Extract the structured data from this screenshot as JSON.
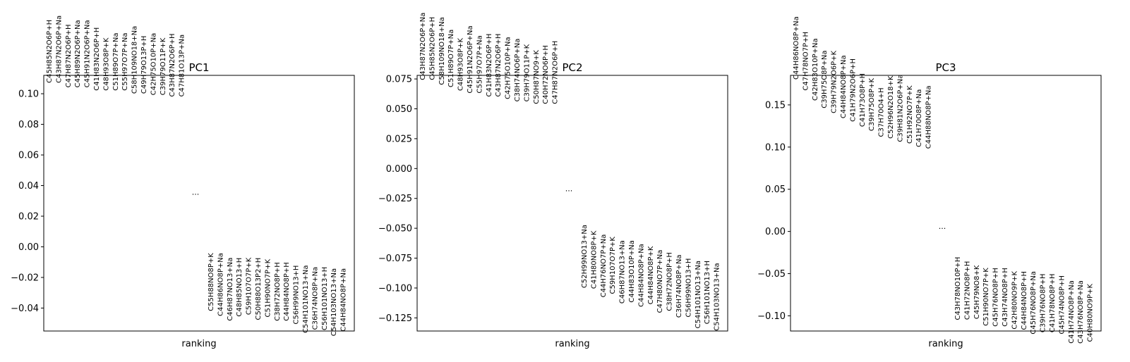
{
  "chart_data": [
    {
      "type": "scatter",
      "title": "PC1",
      "xlabel": "ranking",
      "ylabel": "",
      "ylim": [
        -0.055,
        0.112
      ],
      "yticks": [
        -0.04,
        -0.02,
        0.0,
        0.02,
        0.04,
        0.06,
        0.08,
        0.1
      ],
      "ytick_labels": [
        "−0.04",
        "−0.02",
        "0.00",
        "0.02",
        "0.04",
        "0.06",
        "0.08",
        "0.10"
      ],
      "ellipsis": {
        "label": "...",
        "y": 0.034
      },
      "top_features": [
        {
          "label": "C45H85N2O6P+H",
          "y": 0.107
        },
        {
          "label": "C43H87N2O6P+Na",
          "y": 0.107
        },
        {
          "label": "C47H87N2O6P+H",
          "y": 0.104
        },
        {
          "label": "C45H89N2O6P+Na",
          "y": 0.104
        },
        {
          "label": "C45H91N2O6P+Na",
          "y": 0.104
        },
        {
          "label": "C41H83N2O6P+H",
          "y": 0.102
        },
        {
          "label": "C48H93O8P+K",
          "y": 0.102
        },
        {
          "label": "C51H89O7P+Na",
          "y": 0.102
        },
        {
          "label": "C55H97O7P+Na",
          "y": 0.102
        },
        {
          "label": "C58H109NO18+Na",
          "y": 0.1
        },
        {
          "label": "C49H79O13P+H",
          "y": 0.1
        },
        {
          "label": "C42H75O10P+Na",
          "y": 0.099
        },
        {
          "label": "C39H79O11P+K",
          "y": 0.099
        },
        {
          "label": "C43H87N2O6P+H",
          "y": 0.098
        },
        {
          "label": "C47H81O13P+Na",
          "y": 0.098
        }
      ],
      "bottom_features": [
        {
          "label": "C55H88NO8P+K",
          "y": -0.004
        },
        {
          "label": "C44H86NO8P+Na",
          "y": -0.004
        },
        {
          "label": "C46H87NO13+Na",
          "y": -0.007
        },
        {
          "label": "C48H85NO13+H",
          "y": -0.007
        },
        {
          "label": "C59H107O7P+K",
          "y": -0.007
        },
        {
          "label": "C50H88O13P2+H",
          "y": -0.007
        },
        {
          "label": "C51H90NO7P+K",
          "y": -0.008
        },
        {
          "label": "C38H72NO8P+H",
          "y": -0.01
        },
        {
          "label": "C44H84NO8P+H",
          "y": -0.01
        },
        {
          "label": "C56H99NO13+H",
          "y": -0.012
        },
        {
          "label": "C54H101NO13+Na",
          "y": -0.012
        },
        {
          "label": "C36H74NO8P+Na",
          "y": -0.013
        },
        {
          "label": "C56H101NO13+H",
          "y": -0.013
        },
        {
          "label": "C54H103NO13+Na",
          "y": -0.014
        },
        {
          "label": "C44H84NO8P+Na",
          "y": -0.014
        }
      ]
    },
    {
      "type": "scatter",
      "title": "PC2",
      "xlabel": "ranking",
      "ylabel": "",
      "ylim": [
        -0.136,
        0.078
      ],
      "yticks": [
        -0.125,
        -0.1,
        -0.075,
        -0.05,
        -0.025,
        0.0,
        0.025,
        0.05,
        0.075
      ],
      "ytick_labels": [
        "−0.125",
        "−0.100",
        "−0.075",
        "−0.050",
        "−0.025",
        "0.000",
        "0.025",
        "0.050",
        "0.075"
      ],
      "ellipsis": {
        "label": "...",
        "y": -0.019
      },
      "top_features": [
        {
          "label": "C43H87N2O6P+Na",
          "y": 0.074
        },
        {
          "label": "C45H85N2O6P+H",
          "y": 0.074
        },
        {
          "label": "C58H109NO18+Na",
          "y": 0.07
        },
        {
          "label": "C51H89O7P+Na",
          "y": 0.068
        },
        {
          "label": "C48H93O8P+K",
          "y": 0.065
        },
        {
          "label": "C45H91N2O6P+Na",
          "y": 0.063
        },
        {
          "label": "C55H97O7P+Na",
          "y": 0.063
        },
        {
          "label": "C41H83N2O6P+H",
          "y": 0.06
        },
        {
          "label": "C43H87N2O6P+H",
          "y": 0.06
        },
        {
          "label": "C42H75O10P+Na",
          "y": 0.058
        },
        {
          "label": "C38H74NO6P+Na",
          "y": 0.056
        },
        {
          "label": "C39H79O11P+K",
          "y": 0.056
        },
        {
          "label": "C50H87NO9+K",
          "y": 0.054
        },
        {
          "label": "C40H72NO6P+H",
          "y": 0.054
        },
        {
          "label": "C47H87N2O6P+H",
          "y": 0.054
        }
      ],
      "bottom_features": [
        {
          "label": "C52H99NO13+Na",
          "y": -0.047
        },
        {
          "label": "C41H80NO8P+K",
          "y": -0.052
        },
        {
          "label": "C44H76NO7P+Na",
          "y": -0.055
        },
        {
          "label": "C59H107O7P+K",
          "y": -0.057
        },
        {
          "label": "C46H87NO13+Na",
          "y": -0.06
        },
        {
          "label": "C44H83O10P+Na",
          "y": -0.06
        },
        {
          "label": "C44H84NO8P+Na",
          "y": -0.063
        },
        {
          "label": "C44H84NO8P+K",
          "y": -0.065
        },
        {
          "label": "C47H80NO7P+Na",
          "y": -0.068
        },
        {
          "label": "C38H72NO8P+H",
          "y": -0.07
        },
        {
          "label": "C36H74NO8P+Na",
          "y": -0.072
        },
        {
          "label": "C56H99NO13+H",
          "y": -0.075
        },
        {
          "label": "C54H101NO13+Na",
          "y": -0.077
        },
        {
          "label": "C56H101NO13+H",
          "y": -0.077
        },
        {
          "label": "C54H103NO13+Na",
          "y": -0.079
        }
      ]
    },
    {
      "type": "scatter",
      "title": "PC3",
      "xlabel": "ranking",
      "ylabel": "",
      "ylim": [
        -0.118,
        0.185
      ],
      "yticks": [
        -0.1,
        -0.05,
        0.0,
        0.05,
        0.1,
        0.15
      ],
      "ytick_labels": [
        "−0.10",
        "−0.05",
        "0.00",
        "0.05",
        "0.10",
        "0.15"
      ],
      "ellipsis": {
        "label": "...",
        "y": 0.003
      },
      "top_features": [
        {
          "label": "C44H86NO8P+Na",
          "y": 0.18
        },
        {
          "label": "C47H78NO7P+H",
          "y": 0.167
        },
        {
          "label": "C42H83O10P+Na",
          "y": 0.155
        },
        {
          "label": "C39H75O8P+Na",
          "y": 0.146
        },
        {
          "label": "C39H79N2O6P+K",
          "y": 0.14
        },
        {
          "label": "C44H84NO8P+Na",
          "y": 0.134
        },
        {
          "label": "C41H79N2O6P+H",
          "y": 0.13
        },
        {
          "label": "C41H73O8P+H",
          "y": 0.124
        },
        {
          "label": "C39H75O8P+K",
          "y": 0.119
        },
        {
          "label": "C37H70O4+H",
          "y": 0.112
        },
        {
          "label": "C52H96N2O18+K",
          "y": 0.11
        },
        {
          "label": "C39H81N2O6P+Na",
          "y": 0.106
        },
        {
          "label": "C51H92NO7P+K",
          "y": 0.104
        },
        {
          "label": "C41H70O8P+Na",
          "y": 0.1
        },
        {
          "label": "C44H88NO8P+Na",
          "y": 0.098
        }
      ],
      "bottom_features": [
        {
          "label": "C43H78NO10P+H",
          "y": -0.03
        },
        {
          "label": "C41H72NO8P+H",
          "y": -0.035
        },
        {
          "label": "C45H79NO8+K",
          "y": -0.04
        },
        {
          "label": "C51H90NO7P+K",
          "y": -0.043
        },
        {
          "label": "C45H76NO8P+H",
          "y": -0.043
        },
        {
          "label": "C43H74NO8P+H",
          "y": -0.043
        },
        {
          "label": "C42H80NO9P+K",
          "y": -0.047
        },
        {
          "label": "C44H84NO8P+H",
          "y": -0.047
        },
        {
          "label": "C45H76NO8P+Na",
          "y": -0.047
        },
        {
          "label": "C39H76NO8P+H",
          "y": -0.05
        },
        {
          "label": "C41H78NO8P+H",
          "y": -0.05
        },
        {
          "label": "C45H74NO8P+H",
          "y": -0.052
        },
        {
          "label": "C41H74NO8P+Na",
          "y": -0.058
        },
        {
          "label": "C43H76NO8P+Na",
          "y": -0.058
        },
        {
          "label": "C40H80NO9P+K",
          "y": -0.062
        }
      ]
    }
  ]
}
